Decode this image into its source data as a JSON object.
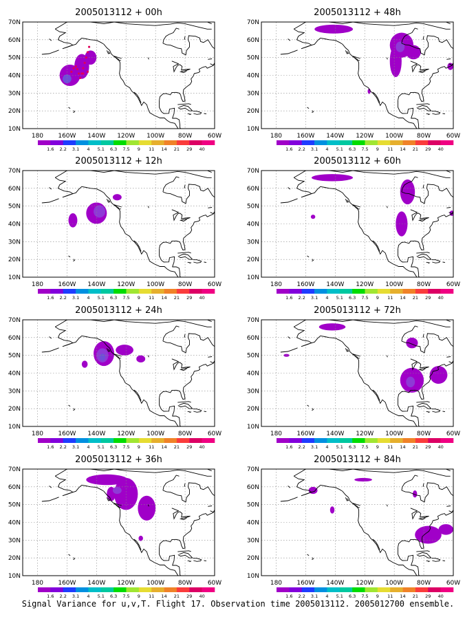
{
  "panels": [
    {
      "title": "2005013112 + 00h",
      "blobs": [
        {
          "lon": -158,
          "lat": 40,
          "rx": 7,
          "ry": 6,
          "level": 1
        },
        {
          "lon": -150,
          "lat": 45,
          "rx": 5,
          "ry": 7,
          "level": 1
        },
        {
          "lon": -144,
          "lat": 50,
          "rx": 4,
          "ry": 4,
          "level": 1
        },
        {
          "lon": -160,
          "lat": 38,
          "rx": 3,
          "ry": 2.5,
          "level": 3
        }
      ],
      "flight": true
    },
    {
      "title": "2005013112 + 12h",
      "blobs": [
        {
          "lon": -140,
          "lat": 46,
          "rx": 7,
          "ry": 6,
          "level": 1
        },
        {
          "lon": -156,
          "lat": 42,
          "rx": 3,
          "ry": 4,
          "level": 1
        },
        {
          "lon": -138,
          "lat": 47,
          "rx": 4,
          "ry": 3.5,
          "level": 2
        },
        {
          "lon": -126,
          "lat": 55,
          "rx": 3,
          "ry": 1.8,
          "level": 1
        }
      ]
    },
    {
      "title": "2005013112 + 24h",
      "blobs": [
        {
          "lon": -135,
          "lat": 51,
          "rx": 7,
          "ry": 7,
          "level": 1
        },
        {
          "lon": -121,
          "lat": 53,
          "rx": 6,
          "ry": 3,
          "level": 1
        },
        {
          "lon": -110,
          "lat": 48,
          "rx": 3,
          "ry": 2,
          "level": 1
        },
        {
          "lon": -148,
          "lat": 45,
          "rx": 2,
          "ry": 2,
          "level": 1
        },
        {
          "lon": -136,
          "lat": 50,
          "rx": 4,
          "ry": 4,
          "level": 2
        },
        {
          "lon": -136,
          "lat": 49,
          "rx": 2,
          "ry": 2,
          "level": 3
        }
      ]
    },
    {
      "title": "2005013112 + 36h",
      "blobs": [
        {
          "lon": -133,
          "lat": 64,
          "rx": 14,
          "ry": 3,
          "level": 1
        },
        {
          "lon": -120,
          "lat": 56,
          "rx": 8,
          "ry": 9,
          "level": 1
        },
        {
          "lon": -106,
          "lat": 48,
          "rx": 6,
          "ry": 7,
          "level": 1
        },
        {
          "lon": -130,
          "lat": 56,
          "rx": 3,
          "ry": 4,
          "level": 1
        },
        {
          "lon": -126,
          "lat": 58,
          "rx": 3,
          "ry": 2,
          "level": 2
        },
        {
          "lon": -110,
          "lat": 31,
          "rx": 1.5,
          "ry": 1.5,
          "level": 1
        }
      ]
    },
    {
      "title": "2005013112 + 48h",
      "blobs": [
        {
          "lon": -141,
          "lat": 66,
          "rx": 13,
          "ry": 2.5,
          "level": 1
        },
        {
          "lon": -95,
          "lat": 57,
          "rx": 8,
          "ry": 7,
          "level": 1
        },
        {
          "lon": -99,
          "lat": 48,
          "rx": 4,
          "ry": 9,
          "level": 1
        },
        {
          "lon": -87,
          "lat": 53,
          "rx": 5,
          "ry": 4,
          "level": 1
        },
        {
          "lon": -96,
          "lat": 56,
          "rx": 3,
          "ry": 3,
          "level": 2
        },
        {
          "lon": -62,
          "lat": 45,
          "rx": 2,
          "ry": 2,
          "level": 1
        },
        {
          "lon": -117,
          "lat": 31,
          "rx": 1,
          "ry": 1.5,
          "level": 1
        }
      ]
    },
    {
      "title": "2005013112 + 60h",
      "blobs": [
        {
          "lon": -142,
          "lat": 66,
          "rx": 14,
          "ry": 2,
          "level": 1
        },
        {
          "lon": -91,
          "lat": 58,
          "rx": 5,
          "ry": 7,
          "level": 1
        },
        {
          "lon": -95,
          "lat": 40,
          "rx": 4,
          "ry": 7,
          "level": 1
        },
        {
          "lon": -155,
          "lat": 44,
          "rx": 1.5,
          "ry": 1.2,
          "level": 1
        },
        {
          "lon": -61,
          "lat": 46,
          "rx": 1.5,
          "ry": 1.5,
          "level": 1
        }
      ]
    },
    {
      "title": "2005013112 + 72h",
      "blobs": [
        {
          "lon": -142,
          "lat": 66,
          "rx": 9,
          "ry": 2,
          "level": 1
        },
        {
          "lon": -88,
          "lat": 57,
          "rx": 4,
          "ry": 3,
          "level": 1
        },
        {
          "lon": -88,
          "lat": 36,
          "rx": 8,
          "ry": 7,
          "level": 1
        },
        {
          "lon": -70,
          "lat": 39,
          "rx": 6,
          "ry": 5,
          "level": 1
        },
        {
          "lon": -89,
          "lat": 35,
          "rx": 3,
          "ry": 3,
          "level": 2
        },
        {
          "lon": -173,
          "lat": 50,
          "rx": 2,
          "ry": 0.8,
          "level": 1
        }
      ]
    },
    {
      "title": "2005013112 + 84h",
      "blobs": [
        {
          "lon": -155,
          "lat": 58,
          "rx": 3,
          "ry": 2,
          "level": 1
        },
        {
          "lon": -121,
          "lat": 64,
          "rx": 6,
          "ry": 1,
          "level": 1
        },
        {
          "lon": -142,
          "lat": 47,
          "rx": 1.5,
          "ry": 2,
          "level": 1
        },
        {
          "lon": -86,
          "lat": 56,
          "rx": 1.5,
          "ry": 2,
          "level": 1
        },
        {
          "lon": -77,
          "lat": 33,
          "rx": 9,
          "ry": 5,
          "level": 1
        },
        {
          "lon": -65,
          "lat": 36,
          "rx": 5,
          "ry": 3,
          "level": 1
        }
      ]
    }
  ],
  "axes": {
    "lon_range": [
      -190,
      -60
    ],
    "lat_range": [
      10,
      70
    ],
    "x_labels": [
      "180",
      "160W",
      "140W",
      "120W",
      "100W",
      "80W",
      "60W"
    ],
    "x_values": [
      -180,
      -160,
      -140,
      -120,
      -100,
      -80,
      -60
    ],
    "y_labels": [
      "10N",
      "20N",
      "30N",
      "40N",
      "50N",
      "60N",
      "70N"
    ],
    "y_values": [
      10,
      20,
      30,
      40,
      50,
      60,
      70
    ],
    "grid": "dotted"
  },
  "colorbar": {
    "labels": [
      "1.6",
      "2.2",
      "3.1",
      "4",
      "5.1",
      "6.3",
      "7.5",
      "9",
      "11",
      "14",
      "21",
      "29",
      "40"
    ],
    "colors": [
      "#a000c8",
      "#8200dc",
      "#1e3cff",
      "#0090e0",
      "#00bec8",
      "#00c8a0",
      "#00dc00",
      "#a0e632",
      "#e6dc32",
      "#e6af2d",
      "#f08228",
      "#fa3c3c",
      "#dc0064",
      "#f00082"
    ]
  },
  "contour_colors": [
    "#a000c8",
    "#8e3ad6",
    "#6f4fd8",
    "#5a5ada"
  ],
  "caption": "Signal Variance for u,v,T. Flight 17. Observation time 2005013112. 2005012700 ensemble."
}
